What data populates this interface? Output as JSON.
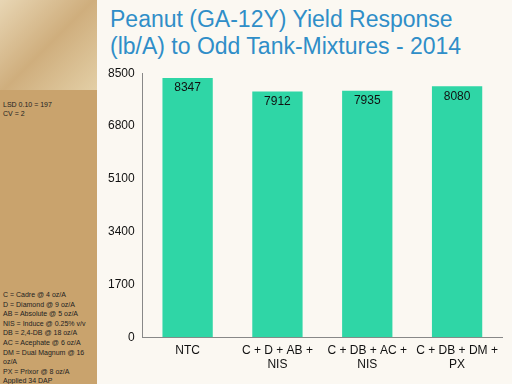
{
  "chart_data": {
    "type": "bar",
    "title": "Peanut (GA-12Y) Yield Response (lb/A) to Odd Tank-Mixtures - 2014",
    "categories": [
      "NTC",
      "C + D + AB + NIS",
      "C + DB + AC + NIS",
      "C + DB + DM + PX"
    ],
    "values": [
      8347,
      7912,
      7935,
      8080
    ],
    "color": "#2fd6a6",
    "ylim": [
      0,
      8500
    ],
    "yticks": [
      0,
      1700,
      3400,
      5100,
      6800,
      8500
    ],
    "grid": false,
    "data_labels": true,
    "annotations": [
      "LSD 0.10 = 197",
      "CV = 2"
    ],
    "footnotes": [
      "C = Cadre @ 4 oz/A",
      "D = Diamond @ 9 oz/A",
      "AB = Absolute @ 5 oz/A",
      "NIS = Induce @ 0.25% v/v",
      "DB = 2,4-DB @ 18 oz/A",
      "AC = Acephate @ 6 oz/A",
      "DM = Dual Magnum @ 16 oz/A",
      "PX = Prixor @ 8 oz/A",
      "Applied 34 DAP"
    ]
  }
}
